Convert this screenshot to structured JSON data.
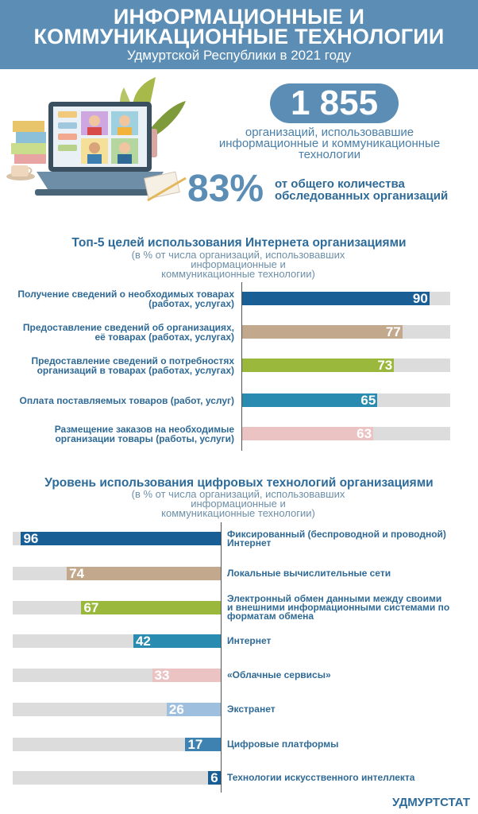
{
  "header": {
    "title_line1": "ИНФОРМАЦИОННЫЕ И",
    "title_line2": "КОММУНИКАЦИОННЫЕ ТЕХНОЛОГИИ",
    "subtitle": "Удмуртской Республики  в 2021 году"
  },
  "kpi": {
    "orgs_value": "1 855",
    "orgs_text_line1": "организаций,  использовавшие",
    "orgs_text_line2": "информационные  и коммуникационные",
    "orgs_text_line3": "технологии",
    "percent_value": "83%",
    "percent_text_line1": "от общего количества",
    "percent_text_line2": "обследованных организаций"
  },
  "section1": {
    "title": "Топ-5 целей использования Интернета организациями",
    "sub_line1": "(в % от числа организаций, использовавших информационные  и",
    "sub_line2": "коммуникационные технологии)"
  },
  "section2": {
    "title": "Уровень использования цифровых технологий организациями",
    "sub_line1": "(в % от числа организаций, использовавших информационные  и",
    "sub_line2": "коммуникационные технологии)"
  },
  "footer": {
    "brand": "УДМУРТСТАТ"
  },
  "colors": {
    "header": "#5b8db5",
    "track": "#dcdcdc"
  },
  "chart_data": [
    {
      "type": "bar",
      "orientation": "horizontal",
      "title": "Топ-5 целей использования Интернета организациями",
      "xlim": [
        0,
        100
      ],
      "categories": [
        [
          "Получение сведений о необходимых товарах",
          "(работах, услугах)"
        ],
        [
          "Предоставление сведений об организациях,",
          "её товарах (работах, услугах)"
        ],
        [
          "Предоставление сведений о потребностях",
          "организаций в товарах (работах, услугах)"
        ],
        [
          "Оплата поставляемых товаров (работ, услуг)"
        ],
        [
          "Размещение заказов на необходимые",
          "организации товары (работы, услуги)"
        ]
      ],
      "values": [
        90,
        77,
        73,
        65,
        63
      ],
      "labels": [
        "90",
        "77",
        "73",
        "65",
        "63"
      ],
      "colors": [
        "#1a5e96",
        "#c2a98d",
        "#9ab83b",
        "#2a8bb0",
        "#ebc3c3"
      ]
    },
    {
      "type": "bar",
      "orientation": "horizontal",
      "direction": "right-to-left",
      "title": "Уровень использования цифровых технологий организациями",
      "xlim": [
        0,
        100
      ],
      "categories": [
        [
          "Фиксированный (беспроводной и проводной)",
          "Интернет"
        ],
        [
          "Локальные вычислительные сети"
        ],
        [
          "Электронный обмен данными между своими",
          "и внешними информационными системами по",
          "форматам обмена"
        ],
        [
          "Интернет"
        ],
        [
          "«Облачные сервисы»"
        ],
        [
          "Экстранет"
        ],
        [
          "Цифровые платформы"
        ],
        [
          "Технологии искусственного интеллекта"
        ]
      ],
      "values": [
        96,
        74,
        67,
        42,
        33,
        26,
        17,
        6
      ],
      "labels": [
        "96",
        "74",
        "67",
        "42",
        "33",
        "26",
        "17",
        "6"
      ],
      "colors": [
        "#1a5e96",
        "#c2a98d",
        "#9ab83b",
        "#2a8bb0",
        "#ebc3c3",
        "#9fbfdf",
        "#3d82b0",
        "#1a5e96"
      ]
    }
  ]
}
